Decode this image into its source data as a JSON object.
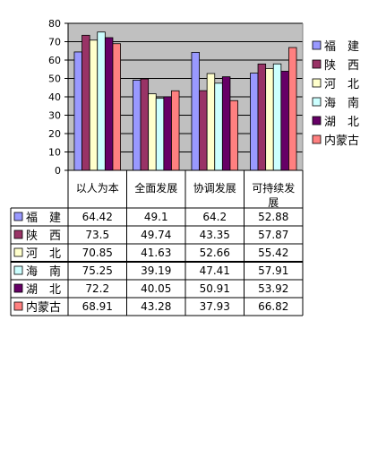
{
  "chart_data": {
    "type": "bar",
    "categories": [
      "以人为本",
      "全面发展",
      "协调发展",
      "可持续发展"
    ],
    "category_lines": [
      [
        "以人为本"
      ],
      [
        "全面发展"
      ],
      [
        "协调发展"
      ],
      [
        "可持续发",
        "展"
      ]
    ],
    "ylim": [
      0,
      80
    ],
    "yticks": [
      "0",
      "10",
      "20",
      "30",
      "40",
      "50",
      "60",
      "70",
      "80"
    ],
    "grid": true,
    "legend_position": "right",
    "series": [
      {
        "name": "福　建",
        "color": "#9999ff",
        "values": [
          64.42,
          49.1,
          64.2,
          52.88
        ],
        "labels": [
          "64.42",
          "49.1",
          "64.2",
          "52.88"
        ]
      },
      {
        "name": "陕　西",
        "color": "#993366",
        "values": [
          73.5,
          49.74,
          43.35,
          57.87
        ],
        "labels": [
          "73.5",
          "49.74",
          "43.35",
          "57.87"
        ]
      },
      {
        "name": "河　北",
        "color": "#ffffcc",
        "values": [
          70.85,
          41.63,
          52.66,
          55.42
        ],
        "labels": [
          "70.85",
          "41.63",
          "52.66",
          "55.42"
        ]
      },
      {
        "name": "海　南",
        "color": "#ccffff",
        "values": [
          75.25,
          39.19,
          47.41,
          57.91
        ],
        "labels": [
          "75.25",
          "39.19",
          "47.41",
          "57.91"
        ]
      },
      {
        "name": "湖　北",
        "color": "#660066",
        "values": [
          72.2,
          40.05,
          50.91,
          53.92
        ],
        "labels": [
          "72.2",
          "40.05",
          "50.91",
          "53.92"
        ]
      },
      {
        "name": "内蒙古",
        "color": "#ff8080",
        "values": [
          68.91,
          43.28,
          37.93,
          66.82
        ],
        "labels": [
          "68.91",
          "43.28",
          "37.93",
          "66.82"
        ]
      }
    ]
  }
}
